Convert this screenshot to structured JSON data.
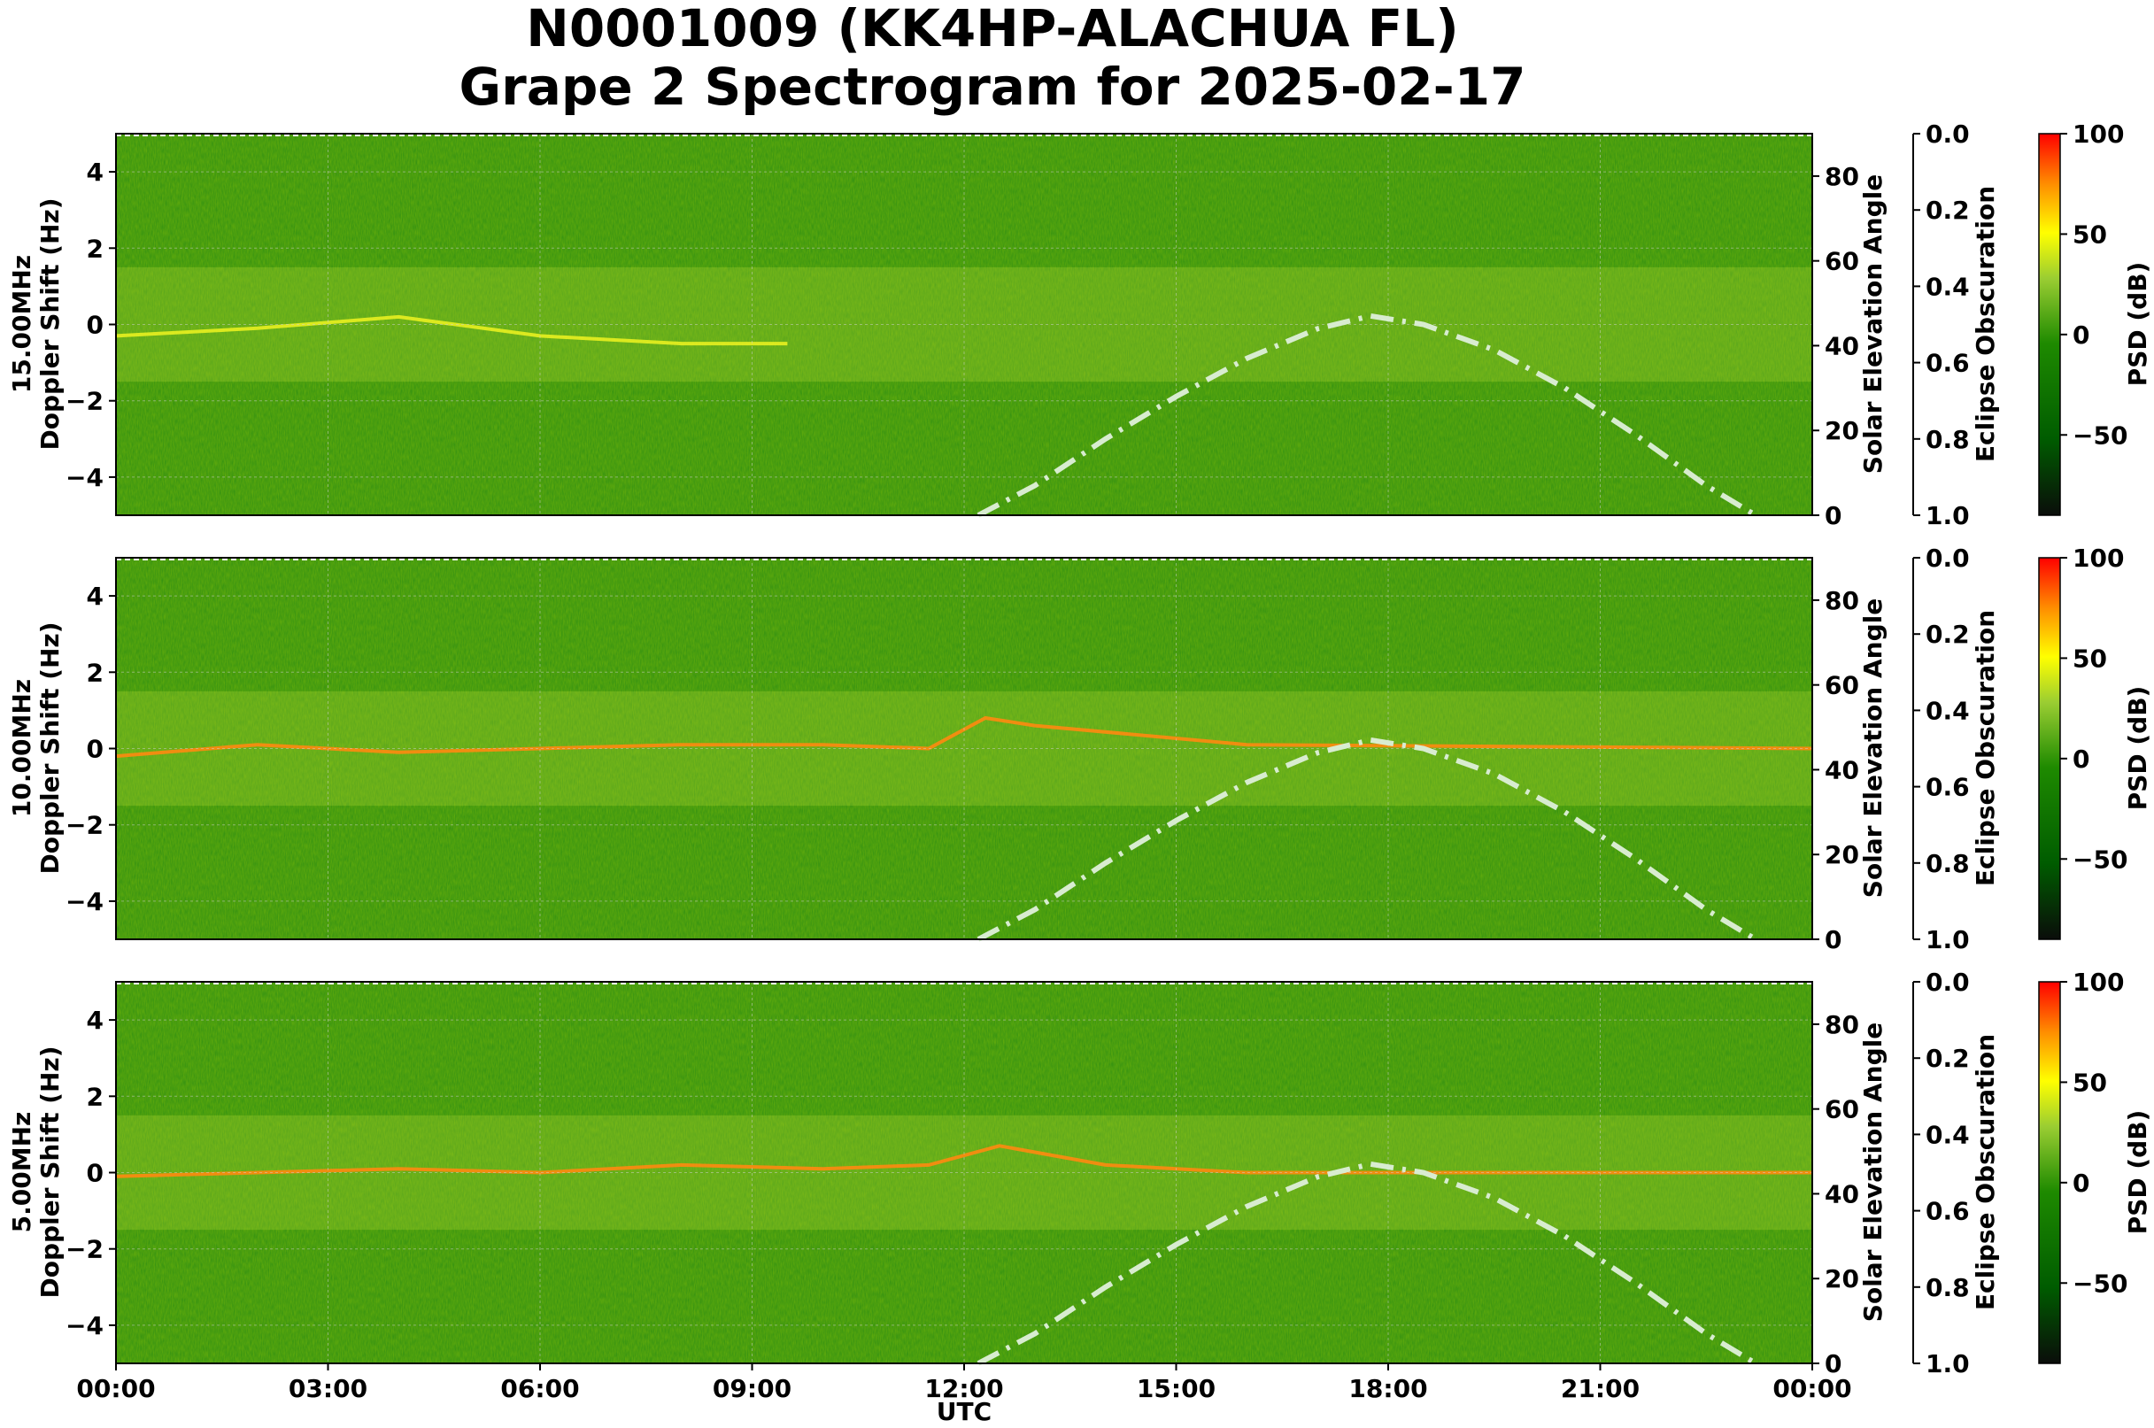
{
  "figure": {
    "title_line1": "N0001009 (KK4HP-ALACHUA FL)",
    "title_line2": "Grape 2 Spectrogram for 2025-02-17"
  },
  "chart_data": {
    "type": "heatmap",
    "x_label": "UTC",
    "x_ticks": [
      "00:00",
      "03:00",
      "06:00",
      "09:00",
      "12:00",
      "15:00",
      "18:00",
      "21:00",
      "00:00"
    ],
    "x_range_hours": [
      0,
      24
    ],
    "y_range": [
      -5,
      5
    ],
    "y_ticks": [
      4,
      2,
      0,
      -2,
      -4
    ],
    "solar_axis": {
      "label": "Solar Elevation Angle",
      "range": [
        0,
        90
      ],
      "ticks": [
        80,
        60,
        40,
        20,
        0
      ]
    },
    "eclipse_axis": {
      "label": "Eclipse Obscuration",
      "range": [
        0.0,
        1.0
      ],
      "ticks": [
        "0.0",
        "0.2",
        "0.4",
        "0.6",
        "0.8",
        "1.0"
      ]
    },
    "colorbar": {
      "label": "PSD (dB)",
      "range": [
        -90,
        100
      ],
      "ticks": [
        100,
        50,
        0,
        -50
      ],
      "stops": [
        "#0a0d0a",
        "#006400",
        "#2e8b00",
        "#9acd32",
        "#ffff00",
        "#ff8c00",
        "#ff0000"
      ]
    },
    "grid": true,
    "solar_elevation_curve": {
      "style": "dash-dot",
      "color": "#d8ecd0",
      "hours": [
        12.2,
        13,
        14,
        15,
        16,
        17,
        17.75,
        18.5,
        19.5,
        20.5,
        21.5,
        22.5,
        23.2
      ],
      "degrees": [
        0,
        7,
        18,
        28,
        37,
        44,
        47,
        45,
        39,
        30,
        19,
        7,
        0
      ]
    },
    "panels": [
      {
        "frequency_label": "15.00MHz",
        "ylabel": "Doppler Shift (Hz)",
        "doppler_trace_hz": [
          [
            0,
            -0.3
          ],
          [
            2,
            -0.1
          ],
          [
            4,
            0.2
          ],
          [
            6,
            -0.3
          ],
          [
            8,
            -0.5
          ],
          [
            9.5,
            -0.5
          ]
        ]
      },
      {
        "frequency_label": "10.00MHz",
        "ylabel": "Doppler Shift (Hz)",
        "doppler_trace_hz": [
          [
            0,
            -0.2
          ],
          [
            2,
            0.1
          ],
          [
            4,
            -0.1
          ],
          [
            6,
            0.0
          ],
          [
            8,
            0.1
          ],
          [
            10,
            0.1
          ],
          [
            11.5,
            0.0
          ],
          [
            12.3,
            0.8
          ],
          [
            13,
            0.6
          ],
          [
            16,
            0.1
          ],
          [
            24,
            0.0
          ]
        ]
      },
      {
        "frequency_label": "5.00MHz",
        "ylabel": "Doppler Shift (Hz)",
        "doppler_trace_hz": [
          [
            0,
            -0.1
          ],
          [
            2,
            0.0
          ],
          [
            4,
            0.1
          ],
          [
            6,
            0.0
          ],
          [
            8,
            0.2
          ],
          [
            10,
            0.1
          ],
          [
            11.5,
            0.2
          ],
          [
            12.5,
            0.7
          ],
          [
            14,
            0.2
          ],
          [
            16,
            0.0
          ],
          [
            24,
            0.0
          ]
        ]
      }
    ]
  }
}
